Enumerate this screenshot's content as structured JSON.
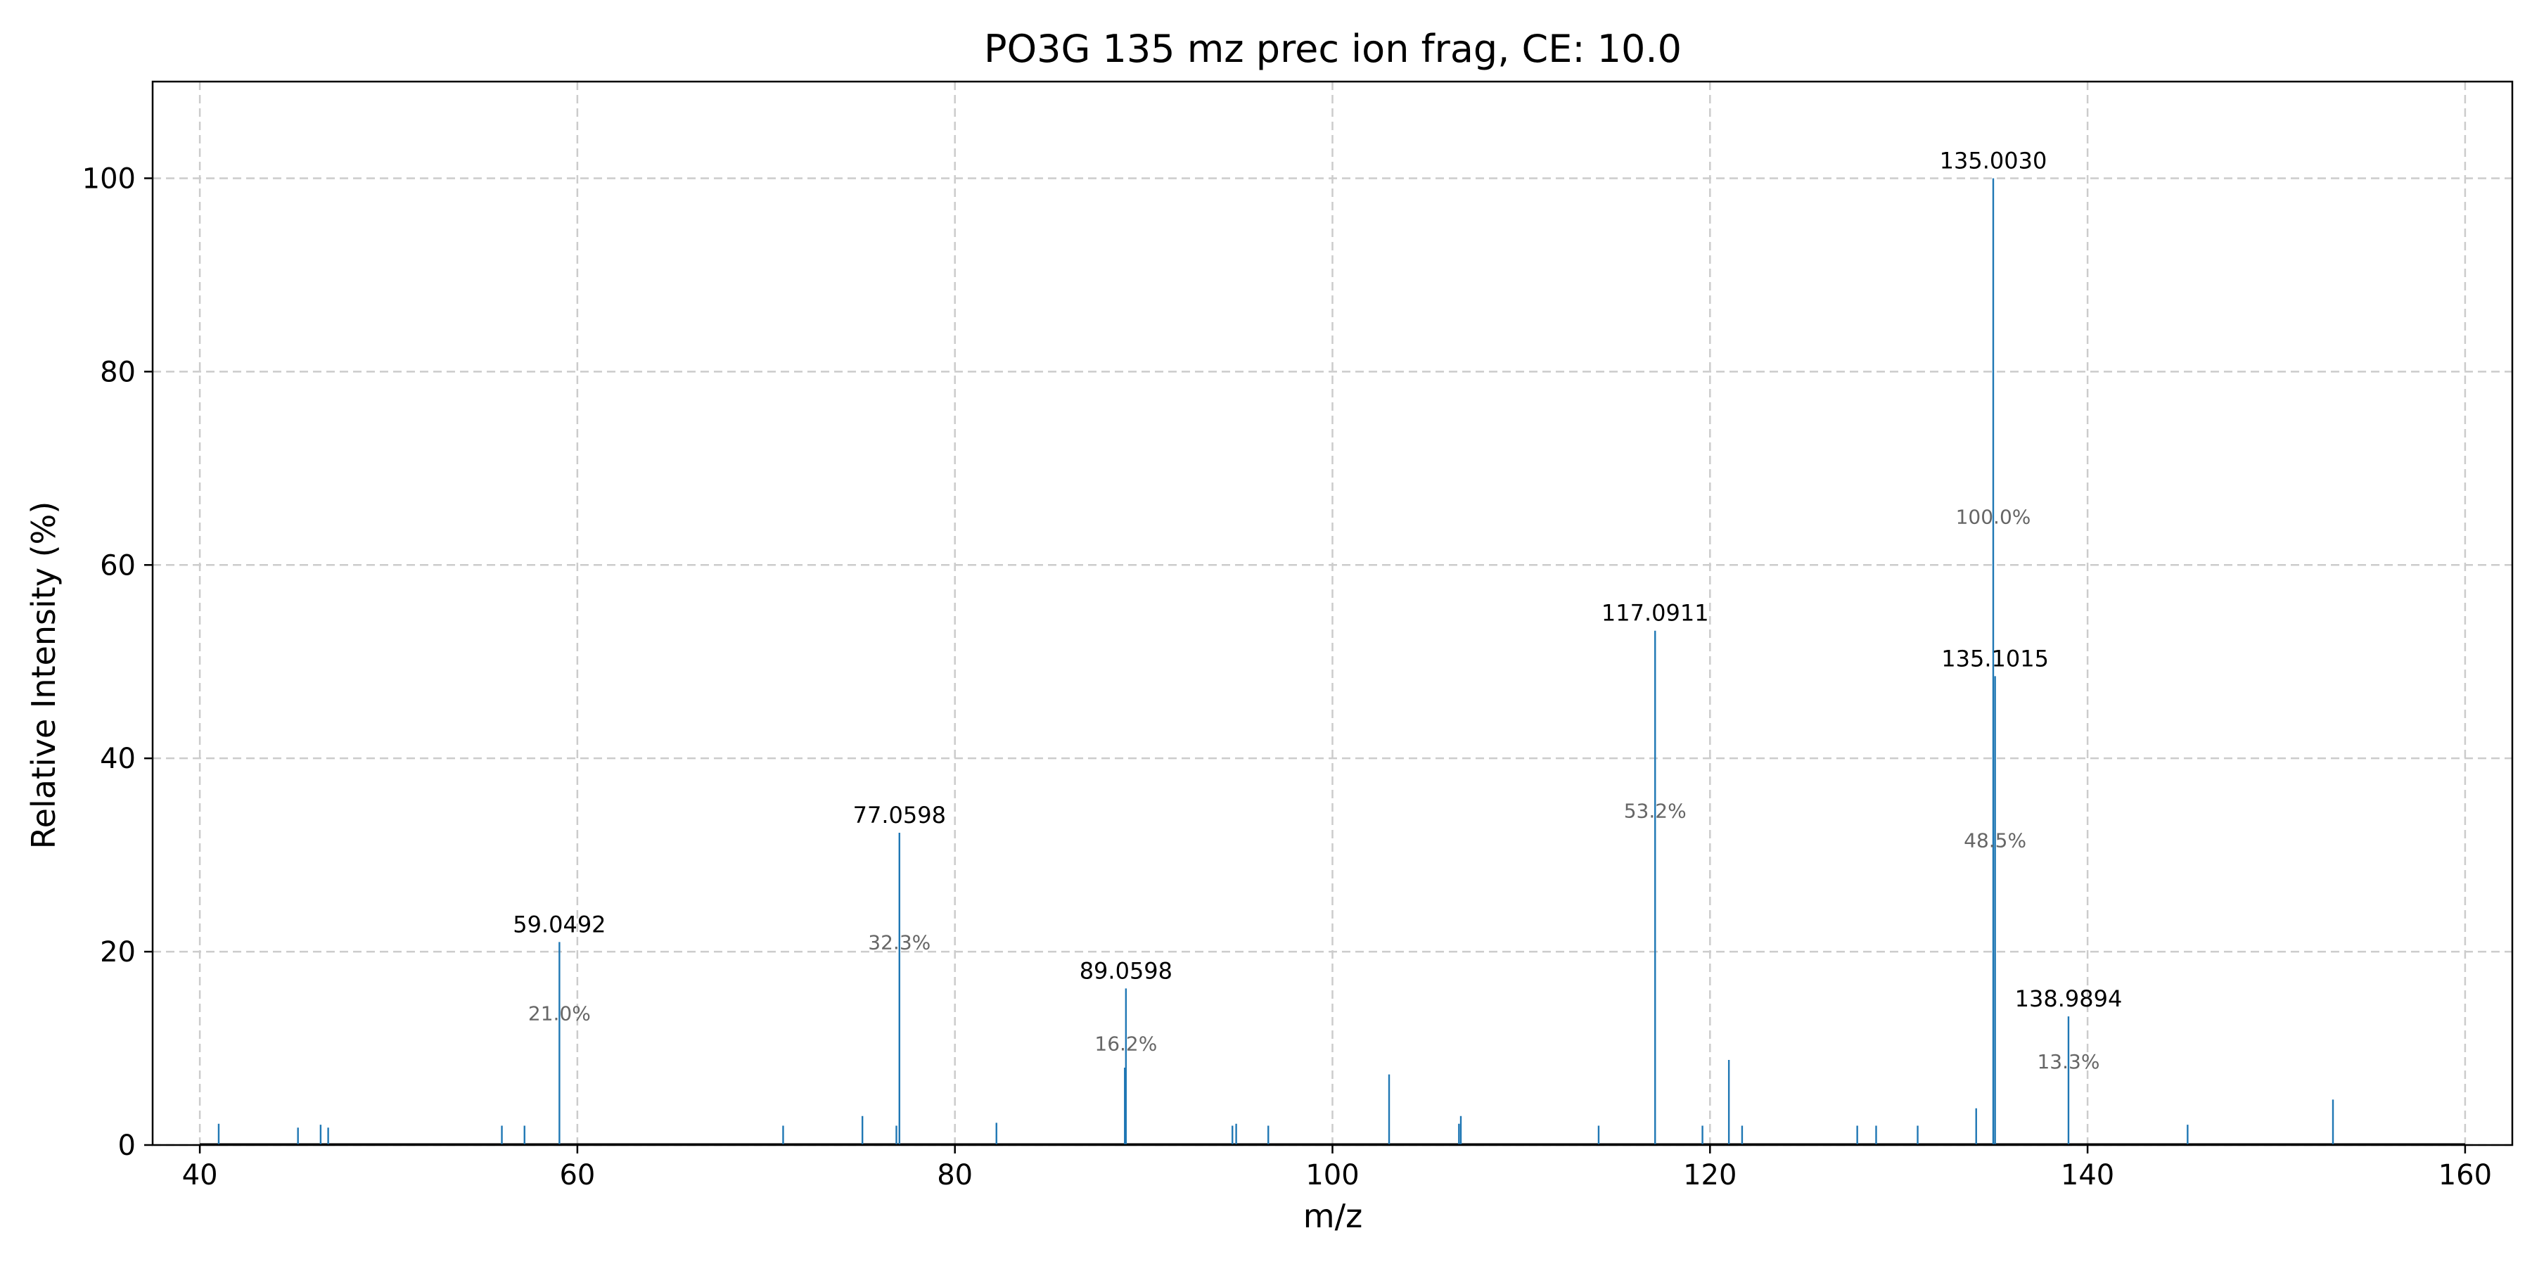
{
  "chart_data": {
    "type": "bar",
    "title": "PO3G 135 mz prec ion frag, CE: 10.0",
    "xlabel": "m/z",
    "ylabel": "Relative Intensity (%)",
    "xlim": [
      37.5,
      162.5
    ],
    "ylim": [
      0,
      110
    ],
    "xticks": [
      40,
      60,
      80,
      100,
      120,
      140,
      160
    ],
    "yticks": [
      0,
      20,
      40,
      60,
      80,
      100
    ],
    "grid": true,
    "bar_color": "#1f77b4",
    "peaks": [
      {
        "mz": 41.0,
        "intensity": 2.2
      },
      {
        "mz": 45.2,
        "intensity": 1.8
      },
      {
        "mz": 46.4,
        "intensity": 2.1
      },
      {
        "mz": 46.8,
        "intensity": 1.8
      },
      {
        "mz": 56.0,
        "intensity": 2.0
      },
      {
        "mz": 57.2,
        "intensity": 2.0
      },
      {
        "mz": 59.0492,
        "intensity": 21.0,
        "label": "59.0492",
        "pct": "21.0%"
      },
      {
        "mz": 70.9,
        "intensity": 2.0
      },
      {
        "mz": 75.1,
        "intensity": 3.0
      },
      {
        "mz": 76.9,
        "intensity": 2.0
      },
      {
        "mz": 77.0598,
        "intensity": 32.3,
        "label": "77.0598",
        "pct": "32.3%"
      },
      {
        "mz": 82.2,
        "intensity": 2.3
      },
      {
        "mz": 89.0,
        "intensity": 8.0
      },
      {
        "mz": 89.0598,
        "intensity": 16.2,
        "label": "89.0598",
        "pct": "16.2%"
      },
      {
        "mz": 94.7,
        "intensity": 2.0
      },
      {
        "mz": 94.9,
        "intensity": 2.2
      },
      {
        "mz": 96.6,
        "intensity": 2.0
      },
      {
        "mz": 103.0,
        "intensity": 7.3
      },
      {
        "mz": 106.7,
        "intensity": 2.2
      },
      {
        "mz": 106.8,
        "intensity": 3.0
      },
      {
        "mz": 114.1,
        "intensity": 2.0
      },
      {
        "mz": 117.0911,
        "intensity": 53.2,
        "label": "117.0911",
        "pct": "53.2%"
      },
      {
        "mz": 119.6,
        "intensity": 2.0
      },
      {
        "mz": 121.0,
        "intensity": 8.8
      },
      {
        "mz": 121.7,
        "intensity": 2.0
      },
      {
        "mz": 127.8,
        "intensity": 2.0
      },
      {
        "mz": 128.8,
        "intensity": 2.0
      },
      {
        "mz": 131.0,
        "intensity": 2.0
      },
      {
        "mz": 134.1,
        "intensity": 3.8
      },
      {
        "mz": 135.003,
        "intensity": 100.0,
        "label": "135.0030",
        "pct": "100.0%"
      },
      {
        "mz": 135.1015,
        "intensity": 48.5,
        "label": "135.1015",
        "pct": "48.5%"
      },
      {
        "mz": 138.9894,
        "intensity": 13.3,
        "label": "138.9894",
        "pct": "13.3%"
      },
      {
        "mz": 145.3,
        "intensity": 2.1
      },
      {
        "mz": 153.0,
        "intensity": 4.7
      }
    ]
  }
}
